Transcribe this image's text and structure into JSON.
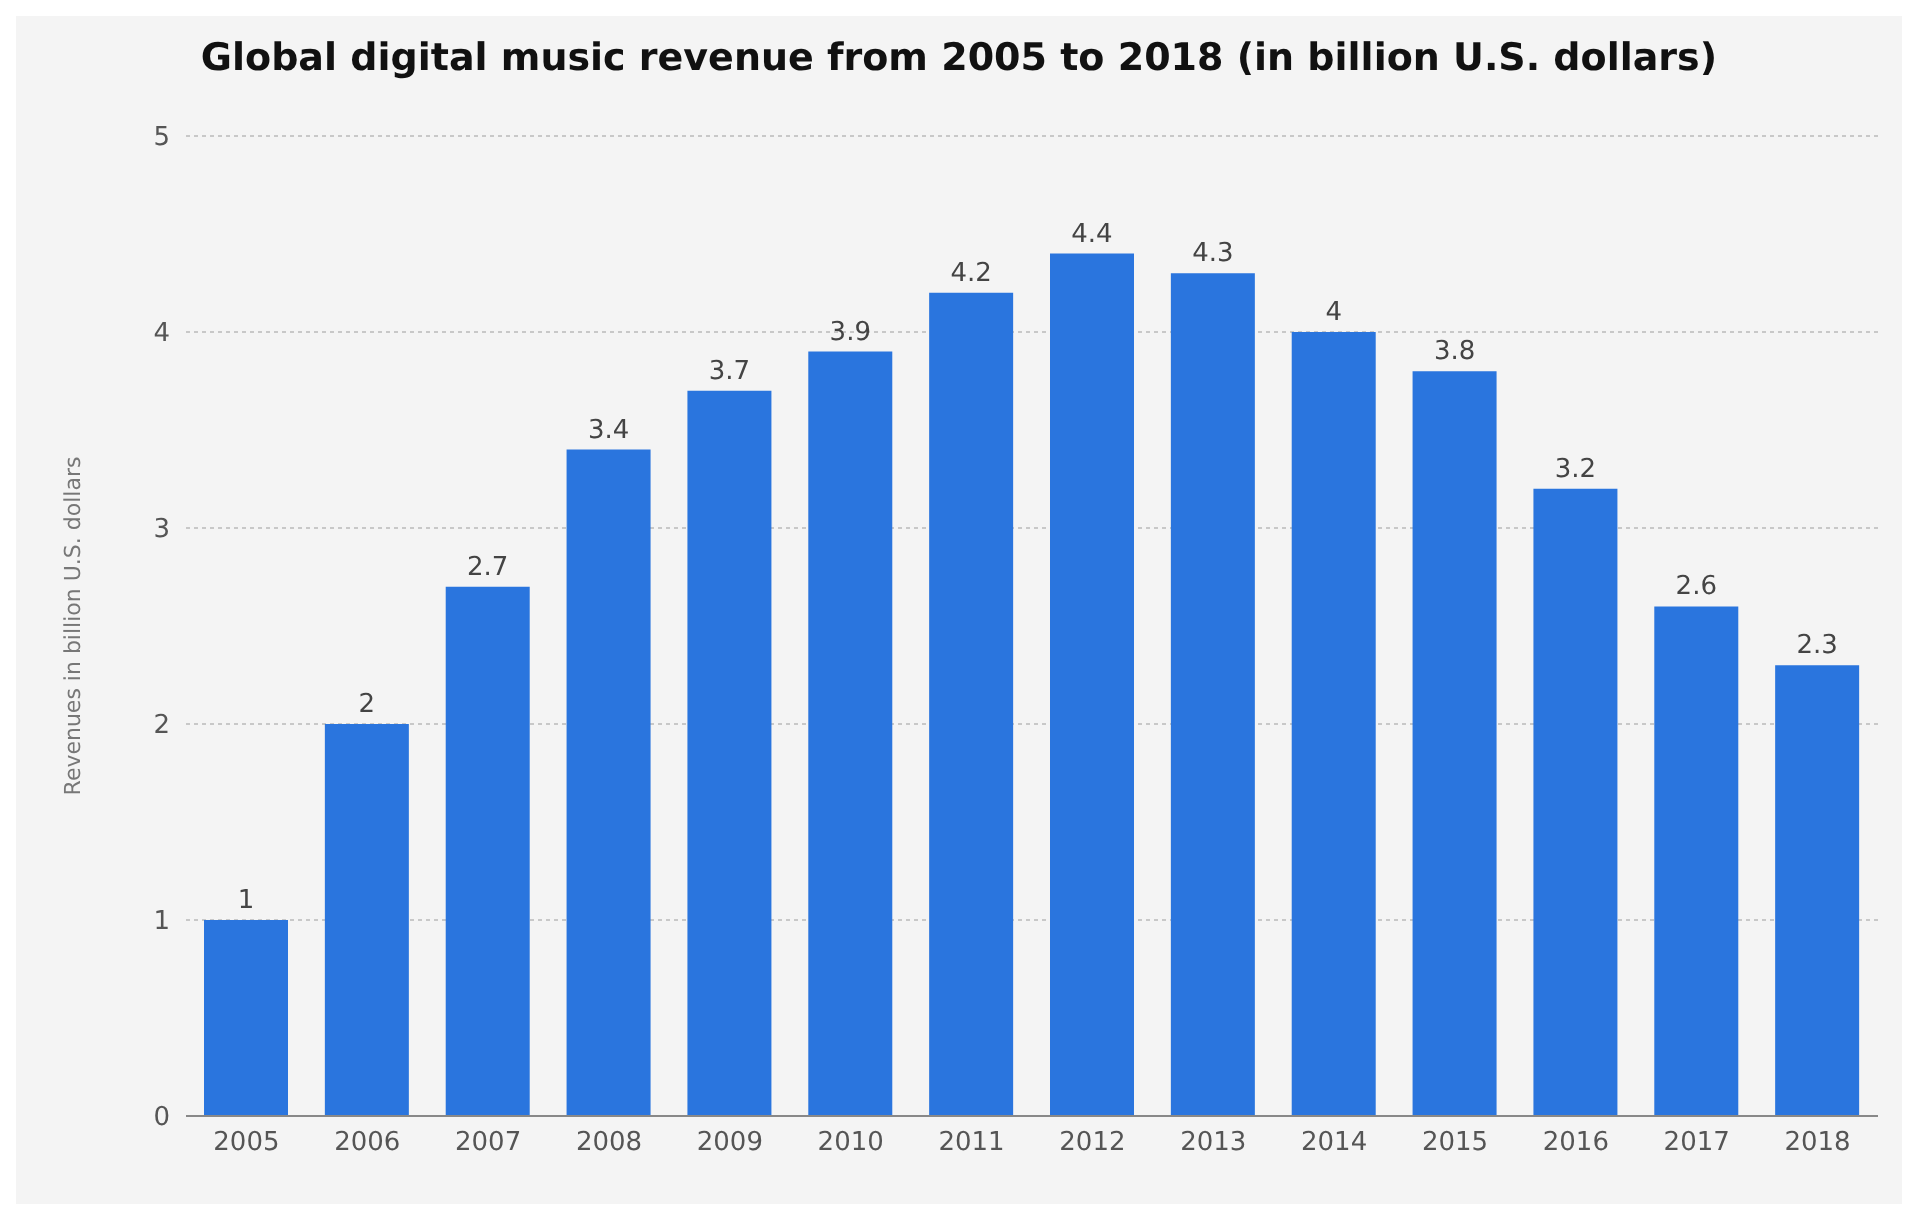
{
  "chart_data": {
    "type": "bar",
    "title": "Global digital music revenue from 2005 to 2018 (in billion U.S. dollars)",
    "ylabel": "Revenues in billion U.S. dollars",
    "categories": [
      "2005",
      "2006",
      "2007",
      "2008",
      "2009",
      "2010",
      "2011",
      "2012",
      "2013",
      "2014",
      "2015",
      "2016",
      "2017",
      "2018"
    ],
    "values": [
      1,
      2,
      2.7,
      3.4,
      3.7,
      3.9,
      4.2,
      4.4,
      4.3,
      4,
      3.8,
      3.2,
      2.6,
      2.3
    ],
    "color": "#2a75de",
    "ylim": [
      0,
      5
    ],
    "yticks": [
      0,
      1,
      2,
      3,
      4,
      5
    ],
    "grid": "y",
    "data_labels": true
  }
}
